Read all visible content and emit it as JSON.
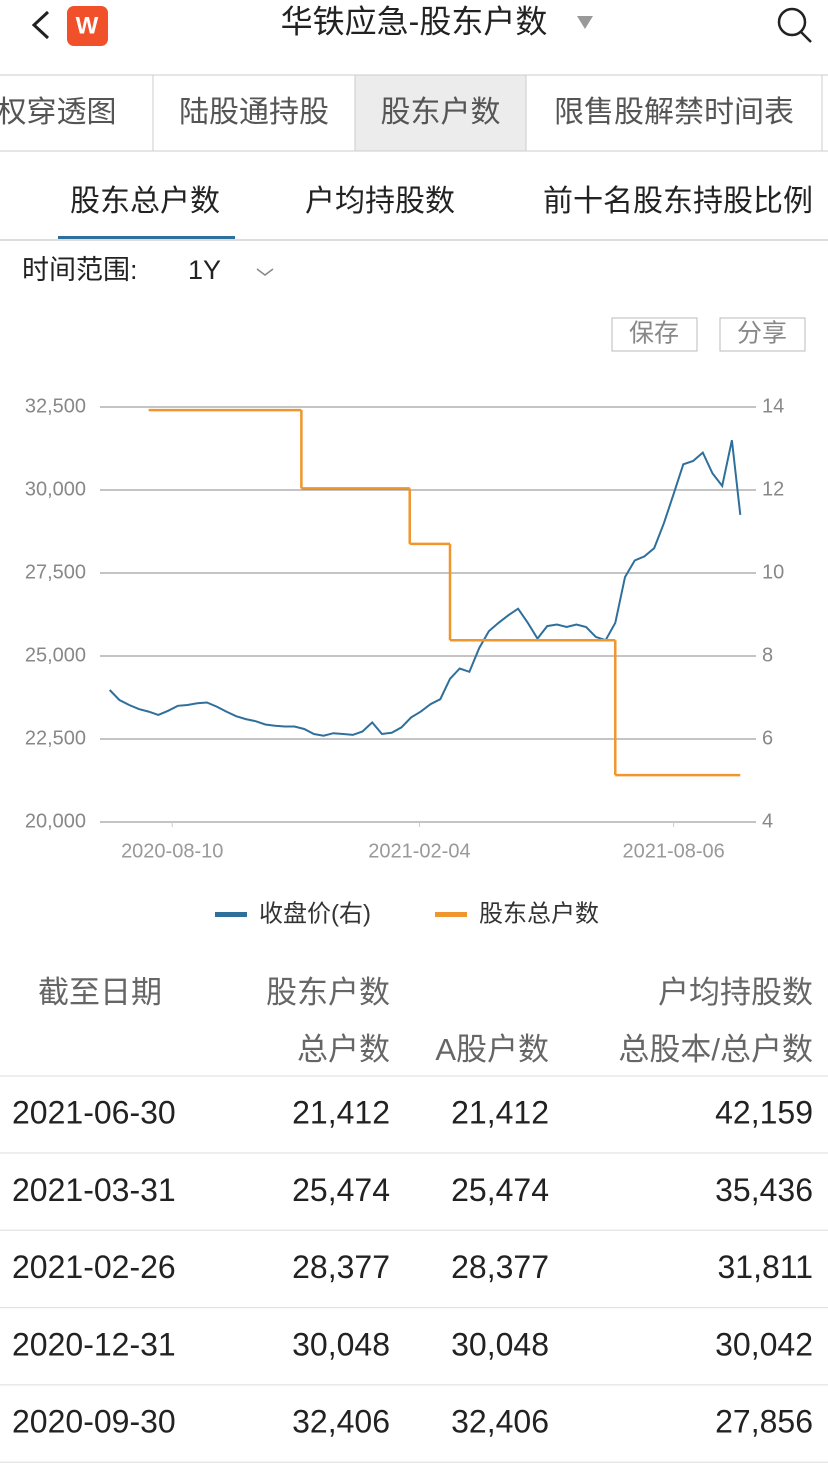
{
  "header": {
    "title": "华铁应急-股东户数",
    "logo": "W"
  },
  "tabs": [
    "股权穿透图",
    "陆股通持股",
    "股东户数",
    "限售股解禁时间表"
  ],
  "subtabs": [
    "股东总户数",
    "户均持股数",
    "前十名股东持股比例"
  ],
  "range": {
    "label": "时间范围:",
    "value": "1Y"
  },
  "buttons": [
    "保存",
    "分享"
  ],
  "chart_data": {
    "type": "line",
    "xlim": [
      "2020-06-19",
      "2021-09-30"
    ],
    "xticks": [
      "2020-08-10",
      "2021-02-04",
      "2021-08-06"
    ],
    "ylim": [
      20000,
      32500
    ],
    "yticks": [
      {
        "value": 20000,
        "label": "20,000"
      },
      {
        "value": 22500,
        "label": "22,500"
      },
      {
        "value": 25000,
        "label": "25,000"
      },
      {
        "value": 27500,
        "label": "27,500"
      },
      {
        "value": 30000,
        "label": "30,000"
      },
      {
        "value": 32500,
        "label": "32,500"
      }
    ],
    "y2lim": [
      4,
      14
    ],
    "y2ticks": [
      4,
      6,
      8,
      10,
      12,
      14
    ],
    "grid": true,
    "series": [
      {
        "name": "收盘价(右)",
        "color": "#2e6f9c",
        "axis": "y2",
        "step": false,
        "x": [
          "2020-06-26",
          "2020-07-03",
          "2020-07-10",
          "2020-07-17",
          "2020-07-24",
          "2020-07-31",
          "2020-08-07",
          "2020-08-14",
          "2020-08-21",
          "2020-08-28",
          "2020-09-04",
          "2020-09-11",
          "2020-09-18",
          "2020-09-25",
          "2020-10-02",
          "2020-10-09",
          "2020-10-16",
          "2020-10-23",
          "2020-10-30",
          "2020-11-06",
          "2020-11-13",
          "2020-11-20",
          "2020-11-27",
          "2020-12-04",
          "2020-12-11",
          "2020-12-18",
          "2020-12-25",
          "2021-01-01",
          "2021-01-08",
          "2021-01-15",
          "2021-01-22",
          "2021-01-29",
          "2021-02-05",
          "2021-02-12",
          "2021-02-19",
          "2021-02-26",
          "2021-03-05",
          "2021-03-12",
          "2021-03-19",
          "2021-03-26",
          "2021-04-02",
          "2021-04-09",
          "2021-04-16",
          "2021-04-23",
          "2021-04-30",
          "2021-05-07",
          "2021-05-14",
          "2021-05-21",
          "2021-05-28",
          "2021-06-04",
          "2021-06-11",
          "2021-06-18",
          "2021-06-25",
          "2021-07-02",
          "2021-07-09",
          "2021-07-16",
          "2021-07-23",
          "2021-07-30",
          "2021-08-06",
          "2021-08-13",
          "2021-08-20",
          "2021-08-27",
          "2021-09-03",
          "2021-09-10",
          "2021-09-17",
          "2021-09-23"
        ],
        "values": [
          7.18,
          6.94,
          6.82,
          6.72,
          6.66,
          6.58,
          6.68,
          6.8,
          6.82,
          6.86,
          6.88,
          6.78,
          6.66,
          6.55,
          6.48,
          6.43,
          6.35,
          6.32,
          6.3,
          6.3,
          6.24,
          6.12,
          6.08,
          6.14,
          6.12,
          6.1,
          6.18,
          6.4,
          6.12,
          6.15,
          6.28,
          6.52,
          6.66,
          6.84,
          6.96,
          7.45,
          7.7,
          7.62,
          8.19,
          8.6,
          8.8,
          8.98,
          9.14,
          8.8,
          8.42,
          8.72,
          8.76,
          8.7,
          8.76,
          8.7,
          8.46,
          8.38,
          8.8,
          9.9,
          10.3,
          10.4,
          10.6,
          11.2,
          11.9,
          12.62,
          12.7,
          12.9,
          12.4,
          12.1,
          13.2,
          11.4
        ]
      },
      {
        "name": "股东总户数",
        "color": "#f0962e",
        "step": true,
        "x": [
          "2020-07-24",
          "2020-11-11",
          "2021-01-28",
          "2021-02-26",
          "2021-06-25",
          "2021-09-23"
        ],
        "values": [
          32406,
          30048,
          28377,
          25474,
          21412,
          21412
        ]
      }
    ]
  },
  "table": {
    "header1": [
      "截至日期",
      "股东户数",
      "户均持股数"
    ],
    "header2": [
      "总户数",
      "A股户数",
      "总股本/总户数"
    ],
    "rows": [
      [
        "2021-06-30",
        "21,412",
        "21,412",
        "42,159"
      ],
      [
        "2021-03-31",
        "25,474",
        "25,474",
        "35,436"
      ],
      [
        "2021-02-26",
        "28,377",
        "28,377",
        "31,811"
      ],
      [
        "2020-12-31",
        "30,048",
        "30,048",
        "30,042"
      ],
      [
        "2020-09-30",
        "32,406",
        "32,406",
        "27,856"
      ]
    ]
  }
}
